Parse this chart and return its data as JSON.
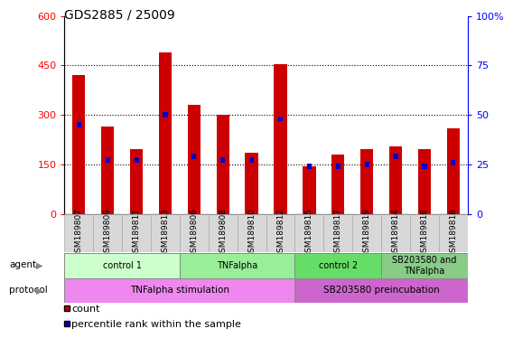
{
  "title": "GDS2885 / 25009",
  "samples": [
    "GSM189807",
    "GSM189809",
    "GSM189811",
    "GSM189813",
    "GSM189806",
    "GSM189808",
    "GSM189810",
    "GSM189812",
    "GSM189815",
    "GSM189817",
    "GSM189819",
    "GSM189814",
    "GSM189816",
    "GSM189818"
  ],
  "counts": [
    420,
    265,
    195,
    490,
    330,
    300,
    185,
    455,
    145,
    180,
    195,
    205,
    195,
    260
  ],
  "percentiles": [
    45,
    27,
    27,
    50,
    29,
    27,
    27,
    48,
    24,
    24,
    25,
    29,
    24,
    26
  ],
  "ylim_left": [
    0,
    600
  ],
  "ylim_right": [
    0,
    100
  ],
  "yticks_left": [
    0,
    150,
    300,
    450,
    600
  ],
  "yticks_right": [
    0,
    25,
    50,
    75,
    100
  ],
  "ytick_right_labels": [
    "0",
    "25",
    "50",
    "75",
    "100%"
  ],
  "bar_color": "#cc0000",
  "percentile_color": "#0000cc",
  "agent_groups": [
    {
      "label": "control 1",
      "start": 0,
      "end": 3,
      "color": "#ccffcc"
    },
    {
      "label": "TNFalpha",
      "start": 4,
      "end": 7,
      "color": "#99ee99"
    },
    {
      "label": "control 2",
      "start": 8,
      "end": 10,
      "color": "#66dd66"
    },
    {
      "label": "SB203580 and\nTNFalpha",
      "start": 11,
      "end": 13,
      "color": "#88cc88"
    }
  ],
  "protocol_groups": [
    {
      "label": "TNFalpha stimulation",
      "start": 0,
      "end": 7,
      "color": "#ee88ee"
    },
    {
      "label": "SB203580 preincubation",
      "start": 8,
      "end": 13,
      "color": "#cc66cc"
    }
  ]
}
